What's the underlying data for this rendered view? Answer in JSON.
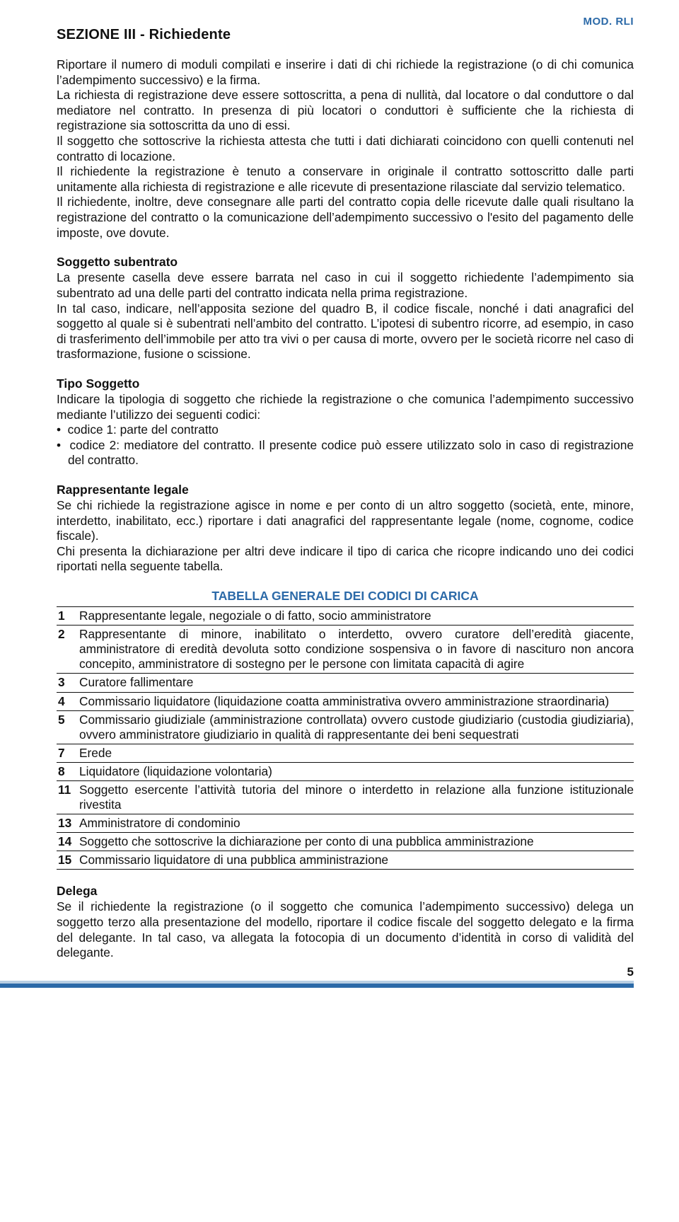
{
  "colors": {
    "accent_blue": "#2c6aa8",
    "accent_light": "#b9cfe3",
    "text": "#111111",
    "bg": "#ffffff"
  },
  "header": {
    "mod_label": "MOD. RLI",
    "section_title": "SEZIONE III - Richiedente"
  },
  "intro": {
    "p1": "Riportare il numero di moduli compilati e inserire i dati di chi richiede la registrazione (o di chi comunica l’adempimento successivo) e la firma.",
    "p2": "La richiesta di registrazione deve essere sottoscritta, a pena di nullità, dal locatore o dal conduttore o dal mediatore nel contratto. In presenza di più locatori o conduttori è sufficiente che la richiesta di registrazione sia sottoscritta da uno di essi.",
    "p3": "Il soggetto che sottoscrive la richiesta attesta che tutti i dati dichiarati coincidono con quelli contenuti nel contratto di locazione.",
    "p4": "Il richiedente la registrazione è tenuto a conservare in originale il contratto sottoscritto dalle parti unitamente alla richiesta di registrazione e alle ricevute di presentazione rilasciate dal servizio telematico.",
    "p5": "Il richiedente, inoltre, deve consegnare alle parti del contratto copia delle ricevute dalle quali risultano la registrazione del contratto o la comunicazione dell’adempimento successivo o l'esito del pagamento delle imposte, ove dovute."
  },
  "subentrato": {
    "title": "Soggetto subentrato",
    "p1": "La presente casella deve essere barrata nel caso in cui il soggetto richiedente l’adempimento sia subentrato ad una delle parti del contratto indicata nella prima registrazione.",
    "p2": "In tal caso, indicare, nell’apposita sezione del quadro B, il codice fiscale, nonché i dati anagrafici del soggetto al quale si è subentrati nell’ambito del contratto. L’ipotesi di subentro ricorre, ad esempio, in caso di trasferimento dell’immobile per atto tra vivi o per causa di morte, ovvero per le società ricorre nel caso di trasformazione, fusione o scissione."
  },
  "tipo": {
    "title": "Tipo Soggetto",
    "p1": "Indicare la tipologia di soggetto che richiede la registrazione o che comunica l’adempimento successivo mediante l’utilizzo dei seguenti codici:",
    "c1": "codice 1: parte del contratto",
    "c2": "codice 2: mediatore del contratto. Il presente codice può essere utilizzato solo in caso di registrazione del contratto."
  },
  "rappresentante": {
    "title": "Rappresentante legale",
    "p1": "Se chi richiede la registrazione agisce in nome e per conto di un altro soggetto (società, ente, minore, interdetto, inabilitato, ecc.) riportare i dati anagrafici del rappresentante legale (nome, cognome, codice fiscale).",
    "p2": "Chi presenta la dichiarazione per altri deve indicare il tipo di carica che ricopre indicando uno dei codici riportati nella seguente tabella."
  },
  "table": {
    "title": "TABELLA GENERALE DEI CODICI DI CARICA",
    "rows": [
      {
        "n": "1",
        "d": "Rappresentante legale, negoziale o di fatto, socio amministratore"
      },
      {
        "n": "2",
        "d": "Rappresentante di minore, inabilitato o interdetto, ovvero curatore dell’eredità giacente, amministratore di eredità devoluta sotto condizione sospensiva o in favore di nascituro non ancora concepito, amministratore di sostegno per le persone con limitata capacità di agire"
      },
      {
        "n": "3",
        "d": "Curatore fallimentare"
      },
      {
        "n": "4",
        "d": "Commissario liquidatore (liquidazione coatta amministrativa ovvero amministrazione straordinaria)"
      },
      {
        "n": "5",
        "d": "Commissario giudiziale (amministrazione controllata) ovvero custode giudiziario (custodia giudiziaria), ovvero amministratore giudiziario in qualità di rappresentante dei beni sequestrati"
      },
      {
        "n": "7",
        "d": "Erede"
      },
      {
        "n": "8",
        "d": "Liquidatore (liquidazione volontaria)"
      },
      {
        "n": "11",
        "d": "Soggetto esercente l’attività tutoria del minore o interdetto in relazione alla funzione istituzionale rivestita"
      },
      {
        "n": "13",
        "d": "Amministratore di condominio"
      },
      {
        "n": "14",
        "d": "Soggetto che sottoscrive la dichiarazione per conto di una pubblica amministrazione"
      },
      {
        "n": "15",
        "d": "Commissario liquidatore di una pubblica amministrazione"
      }
    ]
  },
  "delega": {
    "title": "Delega",
    "p1": "Se il richiedente la registrazione (o il soggetto che comunica l’adempimento successivo) delega un soggetto terzo alla presentazione del modello, riportare il codice fiscale del soggetto delegato e la firma del delegante. In tal caso, va allegata la fotocopia di un documento d’identità in corso di validità del delegante."
  },
  "footer": {
    "page": "5"
  }
}
